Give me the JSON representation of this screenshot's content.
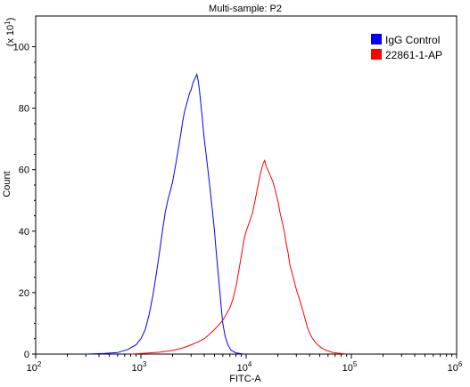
{
  "chart_data": {
    "type": "line",
    "title": "Multi-sample: P2",
    "xlabel": "FITC-A",
    "ylabel": "Count",
    "y_multiplier": "(x 10",
    "y_multiplier_exp": "1",
    "y_multiplier_close": ")",
    "xscale": "log",
    "xlim": [
      100,
      1000000
    ],
    "ylim": [
      0,
      110
    ],
    "x_ticks": [
      {
        "value": 100,
        "base": "10",
        "exp": "2"
      },
      {
        "value": 1000,
        "base": "10",
        "exp": "3"
      },
      {
        "value": 10000,
        "base": "10",
        "exp": "4"
      },
      {
        "value": 100000,
        "base": "10",
        "exp": "5"
      },
      {
        "value": 1000000,
        "base": "10",
        "exp": "6"
      }
    ],
    "y_ticks": [
      {
        "value": 0,
        "label": "0"
      },
      {
        "value": 20,
        "label": "20"
      },
      {
        "value": 40,
        "label": "40"
      },
      {
        "value": 60,
        "label": "60"
      },
      {
        "value": 80,
        "label": "80"
      },
      {
        "value": 100,
        "label": "100"
      }
    ],
    "grid": false,
    "legend_position": "top-right",
    "series": [
      {
        "name": "IgG Control",
        "color": "#0000ff",
        "points": [
          [
            300,
            0
          ],
          [
            450,
            0.2
          ],
          [
            600,
            0.5
          ],
          [
            750,
            1.5
          ],
          [
            900,
            3
          ],
          [
            1000,
            5
          ],
          [
            1100,
            8
          ],
          [
            1200,
            13
          ],
          [
            1300,
            19
          ],
          [
            1400,
            26
          ],
          [
            1500,
            33
          ],
          [
            1600,
            40
          ],
          [
            1700,
            46
          ],
          [
            1800,
            50
          ],
          [
            1900,
            53
          ],
          [
            2000,
            56
          ],
          [
            2100,
            60
          ],
          [
            2200,
            64
          ],
          [
            2300,
            68
          ],
          [
            2400,
            72
          ],
          [
            2500,
            76
          ],
          [
            2600,
            79
          ],
          [
            2700,
            81
          ],
          [
            2800,
            83
          ],
          [
            2900,
            85
          ],
          [
            3000,
            86
          ],
          [
            3100,
            88
          ],
          [
            3200,
            89
          ],
          [
            3300,
            90
          ],
          [
            3400,
            91
          ],
          [
            3500,
            89
          ],
          [
            3600,
            86
          ],
          [
            3700,
            82
          ],
          [
            3800,
            78
          ],
          [
            3900,
            74
          ],
          [
            4000,
            70
          ],
          [
            4200,
            64
          ],
          [
            4400,
            58
          ],
          [
            4600,
            52
          ],
          [
            4800,
            46
          ],
          [
            5000,
            40
          ],
          [
            5200,
            33
          ],
          [
            5400,
            27
          ],
          [
            5600,
            21
          ],
          [
            5800,
            15
          ],
          [
            6000,
            10
          ],
          [
            6300,
            6
          ],
          [
            6700,
            3
          ],
          [
            7200,
            1.2
          ],
          [
            8000,
            0.4
          ],
          [
            9500,
            0
          ]
        ]
      },
      {
        "name": "22861-1-AP",
        "color": "#ff0000",
        "points": [
          [
            800,
            0
          ],
          [
            1100,
            0.3
          ],
          [
            1500,
            0.6
          ],
          [
            2000,
            1.2
          ],
          [
            2500,
            2
          ],
          [
            3000,
            3
          ],
          [
            3500,
            4
          ],
          [
            4000,
            5
          ],
          [
            4500,
            6.5
          ],
          [
            5000,
            8
          ],
          [
            5500,
            9.5
          ],
          [
            6000,
            11
          ],
          [
            6500,
            13
          ],
          [
            7000,
            15
          ],
          [
            7500,
            18
          ],
          [
            8000,
            22
          ],
          [
            8500,
            27
          ],
          [
            9000,
            32
          ],
          [
            9500,
            37
          ],
          [
            10000,
            40
          ],
          [
            10500,
            42
          ],
          [
            11000,
            44
          ],
          [
            11500,
            46
          ],
          [
            12000,
            49
          ],
          [
            12500,
            52
          ],
          [
            13000,
            55
          ],
          [
            13500,
            58
          ],
          [
            14000,
            60
          ],
          [
            14500,
            62
          ],
          [
            15000,
            63
          ],
          [
            15500,
            61
          ],
          [
            16000,
            60
          ],
          [
            17000,
            58
          ],
          [
            18000,
            56
          ],
          [
            19000,
            53
          ],
          [
            20000,
            50
          ],
          [
            21000,
            46
          ],
          [
            22000,
            43
          ],
          [
            23000,
            40
          ],
          [
            24000,
            36
          ],
          [
            25000,
            33
          ],
          [
            26000,
            29
          ],
          [
            28000,
            25
          ],
          [
            30000,
            21
          ],
          [
            32000,
            18
          ],
          [
            34000,
            15
          ],
          [
            36000,
            12
          ],
          [
            38000,
            9
          ],
          [
            40000,
            7
          ],
          [
            42000,
            5.5
          ],
          [
            45000,
            4
          ],
          [
            48000,
            3
          ],
          [
            52000,
            2
          ],
          [
            58000,
            1.2
          ],
          [
            65000,
            0.6
          ],
          [
            75000,
            0.3
          ],
          [
            90000,
            0
          ]
        ]
      }
    ]
  }
}
